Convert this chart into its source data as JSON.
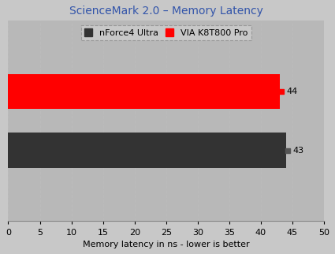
{
  "title": "ScienceMark 2.0 – Memory Latency",
  "xlabel": "Memory latency in ns - lower is better",
  "categories": [
    "nForce4 Ultra",
    "VIA K8T800 Pro"
  ],
  "values": [
    43,
    44
  ],
  "bar_colors": [
    "#333333",
    "#ff0000"
  ],
  "legend_labels": [
    "nForce4 Ultra",
    "VIA K8T800 Pro"
  ],
  "legend_colors": [
    "#333333",
    "#ff0000"
  ],
  "xlim": [
    0,
    50
  ],
  "xticks": [
    0,
    5,
    10,
    15,
    20,
    25,
    30,
    35,
    40,
    45,
    50
  ],
  "bar_labels": [
    "43",
    "44"
  ],
  "label_colors": [
    "#555555",
    "#ff0000"
  ],
  "bg_color": "#c8c8c8",
  "plot_bg_color": "#b8b8b8",
  "title_color": "#3355aa",
  "grid_color": "#bbbbbb",
  "bar_height": 0.6,
  "ylim": [
    -0.5,
    3.5
  ]
}
